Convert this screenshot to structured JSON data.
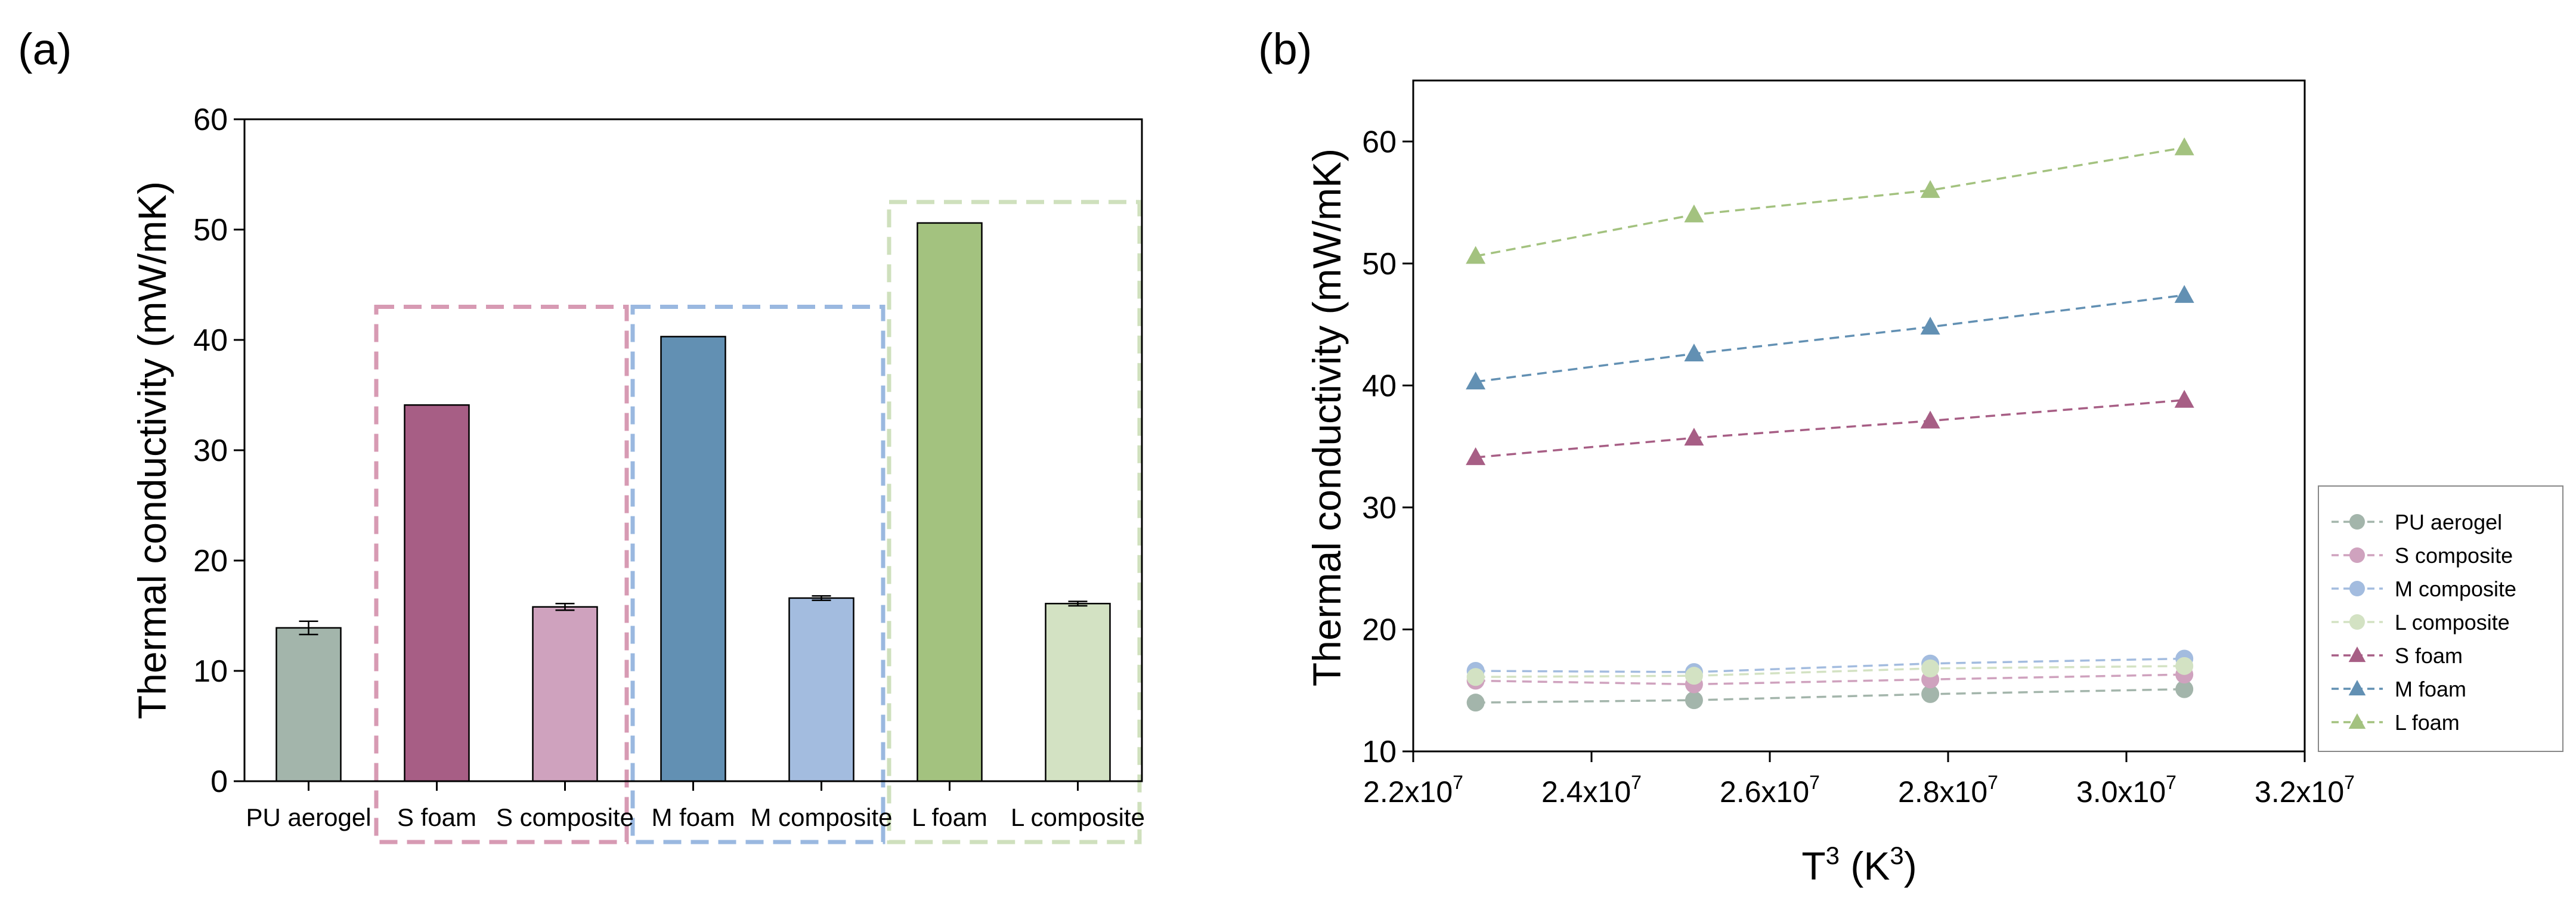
{
  "chart_data": [
    {
      "type": "bar",
      "panel_label": "(a)",
      "ylabel": "Thermal conductivity (mW/mK)",
      "xlabel": "",
      "ylim": [
        0,
        60
      ],
      "yticks": [
        "0",
        "10",
        "20",
        "30",
        "40",
        "50",
        "60"
      ],
      "categories": [
        "PU aerogel",
        "S foam",
        "S composite",
        "M foam",
        "M composite",
        "L foam",
        "L composite"
      ],
      "values": [
        13.9,
        34.1,
        15.8,
        40.3,
        16.6,
        50.6,
        16.1
      ],
      "errors": [
        0.6,
        0,
        0.3,
        0,
        0.2,
        0,
        0.2
      ],
      "bar_colors": [
        "#a3b5ab",
        "#a75e85",
        "#cfa2be",
        "#6290b3",
        "#a3bcdf",
        "#a3c27f",
        "#d3e2c3"
      ],
      "groups": [
        {
          "name": "S",
          "color": "#d79ab3",
          "categories": [
            "S foam",
            "S composite"
          ],
          "ytop": 43
        },
        {
          "name": "M",
          "color": "#9ab8e0",
          "categories": [
            "M foam",
            "M composite"
          ],
          "ytop": 43
        },
        {
          "name": "L",
          "color": "#cfe0bd",
          "categories": [
            "L foam",
            "L composite"
          ],
          "ytop": 52.5
        }
      ]
    },
    {
      "type": "line",
      "panel_label": "(b)",
      "ylabel": "Thermal conductivity (mW/mK)",
      "xlabel_base": "T",
      "xlabel_sup": "3",
      "xlabel_unit_open": " (K",
      "xlabel_unit_sup": "3",
      "xlabel_unit_close": ")",
      "xlim": [
        22000000.0,
        32000000.0
      ],
      "ylim": [
        10,
        65
      ],
      "xticks": [
        {
          "value": 22000000.0,
          "mant": "2.2x10",
          "exp": "7"
        },
        {
          "value": 24000000.0,
          "mant": "2.4x10",
          "exp": "7"
        },
        {
          "value": 26000000.0,
          "mant": "2.6x10",
          "exp": "7"
        },
        {
          "value": 28000000.0,
          "mant": "2.8x10",
          "exp": "7"
        },
        {
          "value": 30000000.0,
          "mant": "3.0x10",
          "exp": "7"
        },
        {
          "value": 32000000.0,
          "mant": "3.2x10",
          "exp": "7"
        }
      ],
      "yticks": [
        10,
        20,
        30,
        40,
        50,
        60
      ],
      "x": [
        22700000.0,
        25150000.0,
        27800000.0,
        30650000.0
      ],
      "series": [
        {
          "name": "PU aerogel",
          "marker": "circle",
          "color": "#a3b5ab",
          "values": [
            14.0,
            14.2,
            14.7,
            15.1
          ]
        },
        {
          "name": "S composite",
          "marker": "circle",
          "color": "#cfa2be",
          "values": [
            15.8,
            15.5,
            15.9,
            16.3
          ]
        },
        {
          "name": "M composite",
          "marker": "circle",
          "color": "#a3bcdf",
          "values": [
            16.6,
            16.5,
            17.2,
            17.6
          ]
        },
        {
          "name": "L composite",
          "marker": "circle",
          "color": "#d3e2c3",
          "values": [
            16.1,
            16.2,
            16.8,
            17.0
          ]
        },
        {
          "name": "S foam",
          "marker": "triangle",
          "color": "#a75e85",
          "values": [
            34.1,
            35.7,
            37.1,
            38.8
          ]
        },
        {
          "name": "M foam",
          "marker": "triangle",
          "color": "#6290b3",
          "values": [
            40.3,
            42.6,
            44.8,
            47.4
          ]
        },
        {
          "name": "L foam",
          "marker": "triangle",
          "color": "#a3c27f",
          "values": [
            50.6,
            54.0,
            56.0,
            59.5
          ]
        }
      ],
      "legend_position": "right"
    }
  ]
}
